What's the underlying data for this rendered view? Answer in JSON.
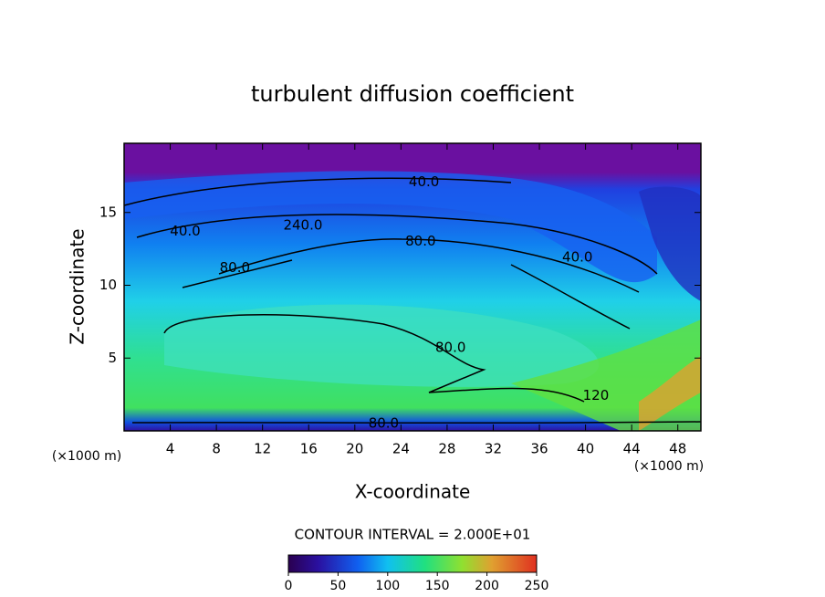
{
  "chart_data": {
    "type": "contour",
    "title": "turbulent diffusion coefficient",
    "x_label": "X-coordinate",
    "y_label": "Z-coordinate",
    "x_unit": "(×1000 m)",
    "y_unit": "(×1000 m)",
    "xlim": [
      0,
      50
    ],
    "xticks": [
      4,
      8,
      12,
      16,
      20,
      24,
      28,
      32,
      36,
      40,
      44,
      48
    ],
    "ylim": [
      0,
      19.75
    ],
    "yticks": [
      5,
      10,
      15
    ],
    "contour_labels": [
      {
        "text": "40.0",
        "x": 26,
        "y": 17.1
      },
      {
        "text": "40.0",
        "x": 5.3,
        "y": 13.7
      },
      {
        "text": "240.0",
        "x": 15.5,
        "y": 14.1
      },
      {
        "text": "80.0",
        "x": 25.7,
        "y": 13.0
      },
      {
        "text": "80.0",
        "x": 9.6,
        "y": 11.2
      },
      {
        "text": "80.0",
        "x": 28.3,
        "y": 5.7
      },
      {
        "text": "40.0",
        "x": 39.3,
        "y": 11.9
      },
      {
        "text": "120",
        "x": 40.9,
        "y": 2.4
      },
      {
        "text": "80.0",
        "x": 22.5,
        "y": 0.5
      }
    ],
    "contour_interval": "CONTOUR INTERVAL = 2.000E+01",
    "colorbar": {
      "lim": [
        0,
        250
      ],
      "ticks": [
        0,
        50,
        100,
        150,
        200,
        250
      ]
    }
  }
}
